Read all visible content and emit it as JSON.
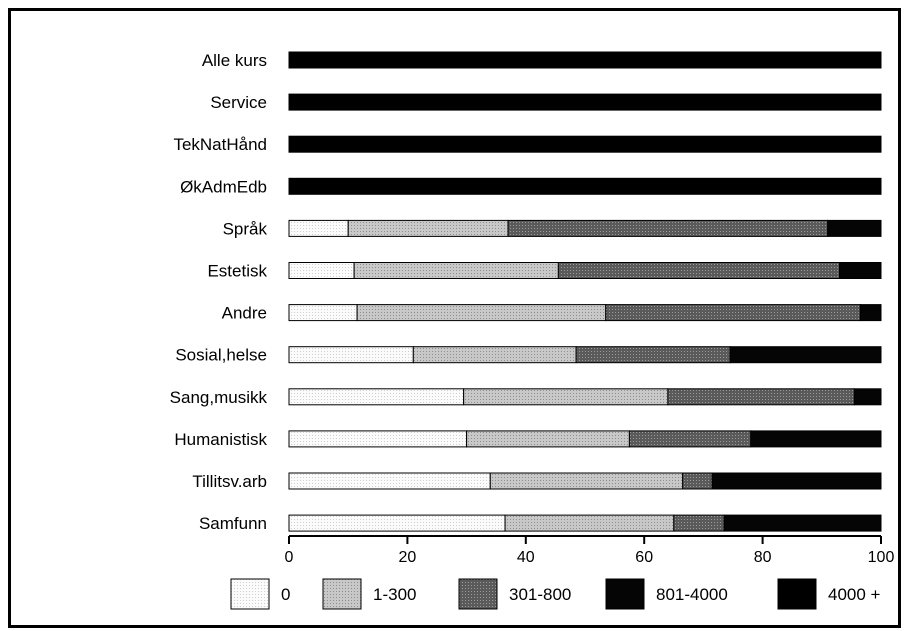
{
  "chart_data": {
    "type": "bar",
    "orientation": "horizontal",
    "stacked": true,
    "categories": [
      "Alle kurs",
      "Service",
      "TekNatHånd",
      "ØkAdmEdb",
      "Språk",
      "Estetisk",
      "Andre",
      "Sosial,helse",
      "Sang,musikk",
      "Humanistisk",
      "Tillitsv.arb",
      "Samfunn"
    ],
    "series": [
      {
        "name": "0",
        "color": "#f3f3f3",
        "values": [
          0,
          0,
          0,
          0,
          10,
          11,
          11.5,
          21,
          29.5,
          30,
          34,
          36.5
        ]
      },
      {
        "name": "1-300",
        "color": "#bdbdbd",
        "values": [
          0,
          0,
          0,
          0,
          27,
          34.5,
          42,
          27.5,
          34.5,
          27.5,
          32.5,
          28.5
        ]
      },
      {
        "name": "301-800",
        "color": "#6f6f6f",
        "values": [
          0,
          0,
          0,
          0,
          54,
          47.5,
          43,
          26,
          31.5,
          20.5,
          5,
          8.5
        ]
      },
      {
        "name": "801-4000",
        "color": "#050505",
        "values": [
          0,
          0,
          0,
          0,
          9,
          7,
          3.5,
          25.5,
          4.5,
          22,
          28.5,
          26.5
        ]
      },
      {
        "name": "4000 +",
        "color": "#000000",
        "values": [
          100,
          100,
          100,
          100,
          0,
          0,
          0,
          0,
          0,
          0,
          0,
          0
        ]
      }
    ],
    "xlim": [
      0,
      100
    ],
    "xticks": [
      0,
      20,
      40,
      60,
      80,
      100
    ],
    "legend_position": "bottom",
    "grid": false
  }
}
